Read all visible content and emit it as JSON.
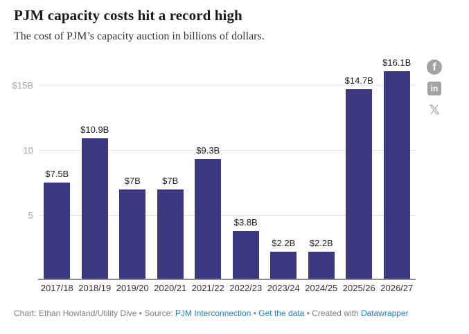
{
  "header": {
    "title": "PJM capacity costs hit a record high",
    "subtitle": "The cost of PJM’s capacity auction in billions of dollars."
  },
  "chart_data": {
    "type": "bar",
    "title": "PJM capacity costs hit a record high",
    "subtitle": "The cost of PJM’s capacity auction in billions of dollars.",
    "categories": [
      "2017/18",
      "2018/19",
      "2019/20",
      "2020/21",
      "2021/22",
      "2022/23",
      "2023/24",
      "2024/25",
      "2025/26",
      "2026/27"
    ],
    "values": [
      7.5,
      10.9,
      7,
      7,
      9.3,
      3.8,
      2.2,
      2.2,
      14.7,
      16.1
    ],
    "value_labels": [
      "$7.5B",
      "$10.9B",
      "$7B",
      "$7B",
      "$9.3B",
      "$3.8B",
      "$2.2B",
      "$2.2B",
      "$14.7B",
      "$16.1B"
    ],
    "xlabel": "",
    "ylabel": "",
    "ylim": [
      0,
      17.05
    ],
    "y_ticks": [
      {
        "value": 5,
        "label": "5"
      },
      {
        "value": 10,
        "label": "10"
      },
      {
        "value": 15,
        "label": "$15B"
      }
    ],
    "grid": true,
    "legend": false,
    "bar_color": "#3b3780",
    "gridline_color": "#e6e6e6",
    "axis_label_color": "#a3a3a3"
  },
  "share": {
    "facebook_glyph": "f",
    "linkedin_glyph": "in",
    "x_glyph": "𝕏"
  },
  "footer": {
    "chart_credit": "Chart: Ethan Howland/Utility Dive",
    "separator": "•",
    "source_label": "Source:",
    "source_link": "PJM Interconnection",
    "get_data_link": "Get the data",
    "created_with": "Created with",
    "tool_link": "Datawrapper",
    "link_color": "#1d81c4"
  }
}
